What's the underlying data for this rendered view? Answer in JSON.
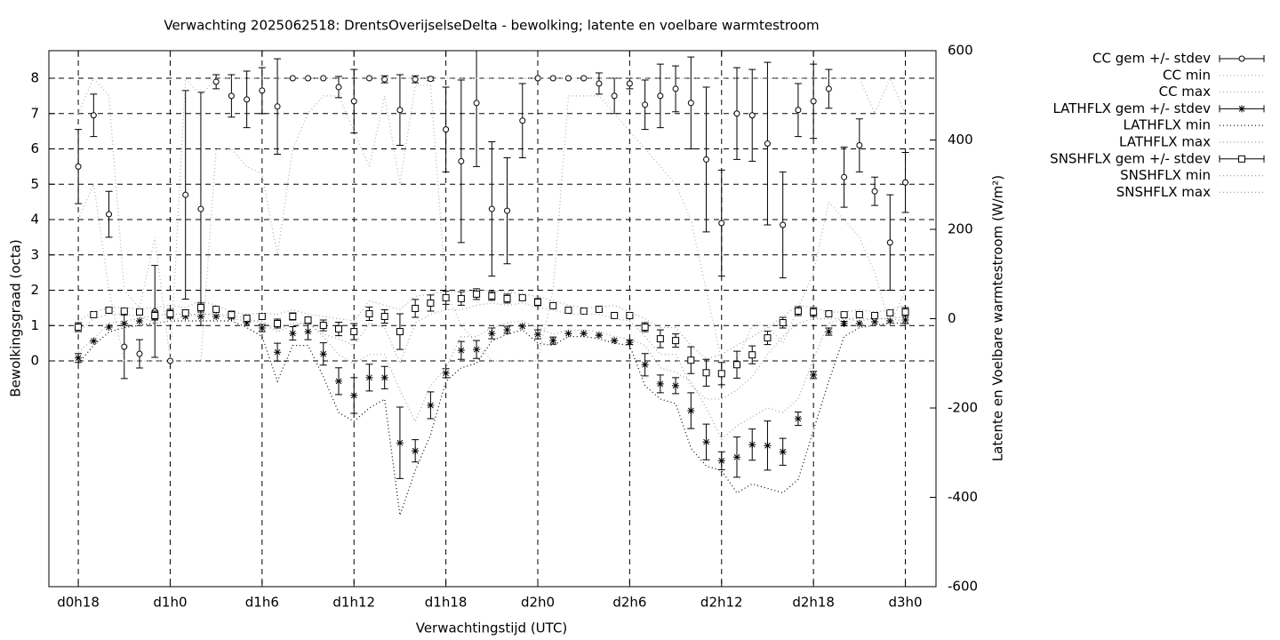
{
  "chart_data": {
    "type": "errorbar",
    "title": "Verwachting 2025062518: DrentsOverijselseDelta - bewolking; latente en voelbare warmtestroom",
    "xlabel": "Verwachtingstijd (UTC)",
    "ylabel": "Bewolkingsgraad (octa)",
    "y2label": "Latente en Voelbare warmtestroom (W/m²)",
    "x": [
      18,
      19,
      20,
      21,
      22,
      23,
      24,
      25,
      26,
      27,
      28,
      29,
      30,
      31,
      32,
      33,
      34,
      35,
      36,
      37,
      38,
      39,
      40,
      41,
      42,
      43,
      44,
      45,
      46,
      47,
      48,
      49,
      50,
      51,
      52,
      53,
      54,
      55,
      56,
      57,
      58,
      59,
      60,
      61,
      62,
      63,
      64,
      65,
      66,
      67,
      68,
      69,
      70,
      71,
      72
    ],
    "xlim": [
      16.08,
      74.0
    ],
    "xticks": [
      {
        "value": 18,
        "label": "d0h18"
      },
      {
        "value": 24,
        "label": "d1h0"
      },
      {
        "value": 30,
        "label": "d1h6"
      },
      {
        "value": 36,
        "label": "d1h12"
      },
      {
        "value": 42,
        "label": "d1h18"
      },
      {
        "value": 48,
        "label": "d2h0"
      },
      {
        "value": 54,
        "label": "d2h6"
      },
      {
        "value": 60,
        "label": "d2h12"
      },
      {
        "value": 66,
        "label": "d2h18"
      },
      {
        "value": 72,
        "label": "d3h0"
      }
    ],
    "ylim": [
      -6.39,
      8.78
    ],
    "yticks": [
      0,
      1,
      2,
      3,
      4,
      5,
      6,
      7,
      8
    ],
    "y2lim": [
      -600,
      600
    ],
    "y2ticks": [
      -600,
      -400,
      -200,
      0,
      200,
      400,
      600
    ],
    "grid": true,
    "legend": "outside-top-right",
    "series": [
      {
        "name": "CC gem +/- stdev",
        "color": "#000000",
        "style": "errorbar",
        "marker": "circle",
        "values": [
          5.5,
          6.95,
          4.15,
          0.4,
          0.2,
          1.4,
          0,
          4.7,
          4.3,
          7.9,
          7.5,
          7.4,
          7.65,
          7.2,
          8,
          8,
          8,
          7.75,
          7.35,
          8,
          7.97,
          7.1,
          7.97,
          7.98,
          6.55,
          5.65,
          7.3,
          4.3,
          4.25,
          6.8,
          8,
          8,
          8,
          8,
          7.85,
          7.5,
          7.85,
          7.25,
          7.5,
          7.7,
          7.3,
          5.7,
          3.9,
          7.0,
          6.95,
          6.15,
          3.85,
          7.1,
          7.35,
          7.7,
          5.2,
          6.1,
          4.8,
          3.35,
          5.05
        ],
        "errors": [
          1.05,
          0.6,
          0.65,
          0.9,
          0.4,
          1.3,
          0,
          2.95,
          3.3,
          0.2,
          0.6,
          0.8,
          0.65,
          1.35,
          0,
          0,
          0,
          0.3,
          0.9,
          0,
          0.1,
          1.0,
          0.1,
          0.05,
          1.2,
          2.3,
          1.8,
          1.9,
          1.5,
          1.05,
          0,
          0,
          0,
          0,
          0.3,
          0.5,
          0.15,
          0.7,
          0.9,
          0.65,
          1.3,
          2.05,
          1.5,
          1.3,
          1.3,
          2.3,
          1.5,
          0.75,
          1.05,
          0.55,
          0.85,
          0.75,
          0.4,
          1.35,
          0.85
        ]
      },
      {
        "name": "CC min",
        "color": "#b0b0b0",
        "style": "dotted",
        "marker": "none",
        "values": [
          4,
          5,
          2,
          0,
          0,
          0,
          0,
          0,
          0,
          6,
          6,
          5.5,
          5.3,
          3,
          6,
          7,
          7.5,
          7.5,
          6.5,
          5.5,
          7.5,
          5,
          7.8,
          7.8,
          2,
          1,
          0.5,
          0,
          0,
          0,
          0,
          2,
          7.5,
          7.5,
          7.5,
          7,
          6.5,
          6,
          5.5,
          5,
          4,
          2,
          0,
          0,
          1,
          1,
          0.5,
          1.5,
          2.5,
          4.5,
          4,
          3.5,
          2.5,
          1,
          2
        ]
      },
      {
        "name": "CC max",
        "color": "#b0b0b0",
        "style": "dotted",
        "marker": "none",
        "values": [
          7,
          8,
          7.5,
          2,
          1.5,
          3.5,
          0,
          8,
          7.5,
          8,
          8,
          8,
          8,
          8,
          8,
          8,
          8,
          8,
          8,
          8,
          8,
          8,
          8,
          8,
          8,
          8,
          8,
          8,
          8,
          8,
          8,
          8,
          8,
          8,
          8,
          8,
          8,
          8,
          8,
          8,
          8,
          8,
          8,
          8,
          8,
          8,
          8,
          8,
          8,
          8,
          8,
          8,
          7,
          8,
          7
        ]
      },
      {
        "name": "LATHFLX gem +/- stdev",
        "color": "#000000",
        "style": "errorbar",
        "marker": "star",
        "axis": "y2",
        "values": [
          -88,
          -50,
          -19,
          -11,
          -5,
          3,
          7,
          5,
          5,
          5,
          3,
          -9,
          -21,
          -75,
          -33,
          -29,
          -79,
          -140,
          -172,
          -132,
          -132,
          -278,
          -296,
          -194,
          -122,
          -71,
          -69,
          -33,
          -25,
          -17,
          -35,
          -49,
          -33,
          -33,
          -37,
          -49,
          -53,
          -103,
          -146,
          -150,
          -206,
          -276,
          -318,
          -310,
          -282,
          -284,
          -298,
          -224,
          -126,
          -29,
          -11,
          -11,
          -7,
          -5,
          -3
        ],
        "errors": [
          10,
          0,
          0,
          0,
          0,
          0,
          0,
          0,
          0,
          0,
          0,
          0,
          8,
          20,
          15,
          18,
          25,
          30,
          40,
          30,
          25,
          80,
          25,
          30,
          10,
          20,
          20,
          12,
          8,
          0,
          10,
          8,
          0,
          0,
          0,
          0,
          5,
          25,
          20,
          18,
          40,
          40,
          20,
          45,
          35,
          55,
          30,
          15,
          8,
          8,
          5,
          0,
          0,
          0,
          8
        ]
      },
      {
        "name": "LATHFLX min",
        "color": "#000000",
        "style": "dotted",
        "marker": "none",
        "axis": "y2",
        "values": [
          -100,
          -60,
          -30,
          -20,
          -15,
          -10,
          -5,
          -5,
          -5,
          -5,
          -5,
          -20,
          -40,
          -140,
          -60,
          -60,
          -130,
          -210,
          -230,
          -200,
          -180,
          -440,
          -340,
          -260,
          -140,
          -110,
          -100,
          -50,
          -35,
          -25,
          -55,
          -60,
          -40,
          -40,
          -45,
          -55,
          -60,
          -150,
          -180,
          -190,
          -290,
          -330,
          -340,
          -390,
          -370,
          -380,
          -390,
          -360,
          -250,
          -140,
          -40,
          -20,
          -15,
          -10,
          -10
        ]
      },
      {
        "name": "LATHFLX max",
        "color": "#a0a0a0",
        "style": "dotted",
        "marker": "none",
        "axis": "y2",
        "values": [
          -75,
          -45,
          -10,
          -5,
          0,
          8,
          10,
          10,
          10,
          10,
          8,
          0,
          -10,
          -30,
          -15,
          -10,
          -40,
          -80,
          -100,
          -80,
          -80,
          -160,
          -230,
          -150,
          -110,
          -40,
          -40,
          -20,
          -10,
          -5,
          -20,
          -35,
          -25,
          -25,
          -30,
          -40,
          -45,
          -60,
          -110,
          -120,
          -140,
          -200,
          -270,
          -240,
          -220,
          -200,
          -210,
          -180,
          -90,
          -10,
          0,
          -5,
          0,
          0,
          5
        ]
      },
      {
        "name": "SNSHFLX gem +/- stdev",
        "color": "#000000",
        "style": "errorbar",
        "marker": "square",
        "axis": "y2",
        "values": [
          -19,
          9,
          19,
          17,
          15,
          7,
          11,
          13,
          25,
          21,
          9,
          1,
          5,
          -11,
          5,
          -3,
          -15,
          -23,
          -29,
          11,
          5,
          -29,
          23,
          35,
          47,
          45,
          55,
          51,
          45,
          47,
          37,
          29,
          19,
          17,
          21,
          7,
          7,
          -19,
          -45,
          -49,
          -93,
          -121,
          -123,
          -103,
          -81,
          -43,
          -9,
          17,
          15,
          11,
          9,
          9,
          7,
          13,
          15
        ],
        "errors": [
          10,
          0,
          0,
          0,
          0,
          10,
          10,
          0,
          10,
          0,
          8,
          0,
          0,
          10,
          8,
          0,
          12,
          15,
          18,
          15,
          15,
          40,
          20,
          18,
          15,
          15,
          12,
          10,
          10,
          5,
          8,
          0,
          0,
          0,
          0,
          0,
          0,
          10,
          20,
          15,
          30,
          30,
          25,
          30,
          20,
          15,
          12,
          10,
          10,
          0,
          0,
          0,
          0,
          0,
          10
        ]
      },
      {
        "name": "SNSHFLX min",
        "color": "#a0a0a0",
        "style": "dotted",
        "marker": "none",
        "axis": "y2",
        "values": [
          -30,
          0,
          10,
          10,
          5,
          -10,
          -5,
          5,
          10,
          10,
          0,
          -5,
          -5,
          -25,
          -10,
          -10,
          -35,
          -45,
          -60,
          -10,
          -20,
          -100,
          -10,
          10,
          20,
          20,
          30,
          35,
          30,
          35,
          25,
          20,
          10,
          10,
          10,
          0,
          -5,
          -40,
          -80,
          -80,
          -150,
          -180,
          -180,
          -160,
          -130,
          -80,
          -40,
          -10,
          0,
          0,
          0,
          0,
          0,
          0,
          -5
        ]
      },
      {
        "name": "SNSHFLX max",
        "color": "#a0a0a0",
        "style": "dotted",
        "marker": "none",
        "axis": "y2",
        "values": [
          -5,
          15,
          25,
          25,
          22,
          25,
          30,
          25,
          40,
          30,
          15,
          10,
          12,
          10,
          20,
          10,
          5,
          0,
          -5,
          40,
          30,
          20,
          50,
          55,
          60,
          60,
          65,
          62,
          60,
          55,
          50,
          40,
          30,
          25,
          25,
          30,
          15,
          0,
          -20,
          -20,
          -60,
          -90,
          -80,
          -60,
          -40,
          -20,
          5,
          30,
          25,
          15,
          15,
          20,
          15,
          20,
          30
        ]
      }
    ]
  }
}
